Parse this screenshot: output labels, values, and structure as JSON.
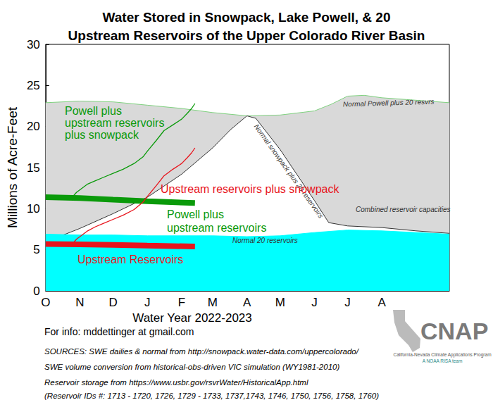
{
  "chart_data": {
    "type": "line",
    "title": "Water Stored in Snowpack, Lake Powell, & 20\nUpstream Reservoirs of the Upper Colorado River Basin",
    "x_label": "Water Year 2022-2023",
    "y_label": "Millions of Acre-Feet",
    "xlim": [
      0,
      365
    ],
    "xticks": [
      {
        "value": 0,
        "label": "O"
      },
      {
        "value": 31,
        "label": "N"
      },
      {
        "value": 61,
        "label": "D"
      },
      {
        "value": 92,
        "label": "J"
      },
      {
        "value": 123,
        "label": "F"
      },
      {
        "value": 151,
        "label": "M"
      },
      {
        "value": 182,
        "label": "A"
      },
      {
        "value": 212,
        "label": "M"
      },
      {
        "value": 243,
        "label": "J"
      },
      {
        "value": 273,
        "label": "J"
      },
      {
        "value": 304,
        "label": "A"
      }
    ],
    "ylim": [
      0,
      30
    ],
    "yticks": [
      0,
      5,
      10,
      15,
      20,
      25,
      30
    ],
    "grid": false,
    "series": [
      {
        "name": "Normal Powell plus 20 resvrs",
        "type": "area",
        "color": "#7fd17f",
        "line_style": "solid",
        "x": [
          0,
          31,
          61,
          92,
          123,
          151,
          182,
          212,
          243,
          258,
          273,
          288,
          304,
          335,
          365
        ],
        "values": [
          22.9,
          23.1,
          23.0,
          22.6,
          22.2,
          21.7,
          21.3,
          21.4,
          21.9,
          22.7,
          23.7,
          23.8,
          23.5,
          23.2,
          22.9
        ]
      },
      {
        "name": "Normal snowpack plus 20 reservoirs",
        "type": "area",
        "color": "#333333",
        "line_style": "solid",
        "x": [
          16,
          31,
          61,
          92,
          123,
          151,
          167,
          182,
          190,
          212,
          243,
          256,
          273,
          304,
          335,
          365
        ],
        "values": [
          6.8,
          7.6,
          9.4,
          11.4,
          14.2,
          17.4,
          19.6,
          21.3,
          21.0,
          17.2,
          11.0,
          8.3,
          7.9,
          7.7,
          7.3,
          7.0
        ]
      },
      {
        "name": "Normal 20 reservoirs",
        "type": "area",
        "color": "#00ffff",
        "line_style": "solid",
        "x": [
          0,
          31,
          61,
          92,
          123,
          151,
          182,
          212,
          243,
          273,
          304,
          335,
          365
        ],
        "values": [
          6.9,
          6.8,
          6.8,
          6.7,
          6.7,
          6.7,
          6.6,
          6.7,
          7.1,
          7.4,
          7.3,
          7.1,
          6.9
        ]
      },
      {
        "name": "Upstream Reservoirs",
        "type": "line",
        "color": "#e8141c",
        "line_style": "thick",
        "x": [
          0,
          31,
          61,
          92,
          135
        ],
        "values": [
          5.7,
          5.65,
          5.6,
          5.5,
          5.4
        ]
      },
      {
        "name": "Powell plus\nupstream reservoirs",
        "type": "line",
        "color": "#0a9a0a",
        "line_style": "thick",
        "x": [
          0,
          31,
          61,
          92,
          135
        ],
        "values": [
          11.4,
          11.3,
          11.1,
          10.9,
          10.7
        ]
      },
      {
        "name": "Upstream reservoirs plus snowpack",
        "type": "line",
        "color": "#e8141c",
        "line_style": "solid",
        "x": [
          24,
          28,
          31,
          38,
          45,
          52,
          61,
          70,
          80,
          88,
          92,
          100,
          107,
          115,
          123,
          128,
          132,
          135
        ],
        "values": [
          5.7,
          6.3,
          6.6,
          7.3,
          7.8,
          8.2,
          8.7,
          9.2,
          9.9,
          10.8,
          11.5,
          12.8,
          14.0,
          14.8,
          15.5,
          16.2,
          16.8,
          17.4
        ]
      },
      {
        "name": "Powell plus\nupstream reservoirs\nplus snowpack",
        "type": "line",
        "color": "#0a9a0a",
        "line_style": "solid",
        "x": [
          24,
          28,
          31,
          38,
          45,
          52,
          61,
          70,
          80,
          88,
          92,
          100,
          107,
          115,
          123,
          128,
          132,
          135
        ],
        "values": [
          11.4,
          12.0,
          12.3,
          13.0,
          13.4,
          13.8,
          14.3,
          14.8,
          15.5,
          16.3,
          17.0,
          18.3,
          19.5,
          20.2,
          20.9,
          21.6,
          22.2,
          22.8
        ]
      }
    ],
    "annotations": [
      "Combined reservoir capacities"
    ],
    "footer": [
      "For info: mddettinger at gmail.com",
      "SOURCES: SWE dailies & normal from http://snowpack.water-data.com/uppercolorado/",
      "SWE volume conversion from historical-obs-driven VIC simulation (WY1981-2010)",
      "Reservoir storage from https://www.usbr.gov/rsvrWater/HistoricalApp.html",
      "(Reservoir IDs #: 1713 - 1720, 1726, 1729 - 1733, 1737,1743, 1746, 1750, 1756, 1758, 1760)"
    ],
    "logo": [
      "CNAP",
      "California-Nevada Climate Applications Program",
      "A NOAA RISA team"
    ]
  }
}
